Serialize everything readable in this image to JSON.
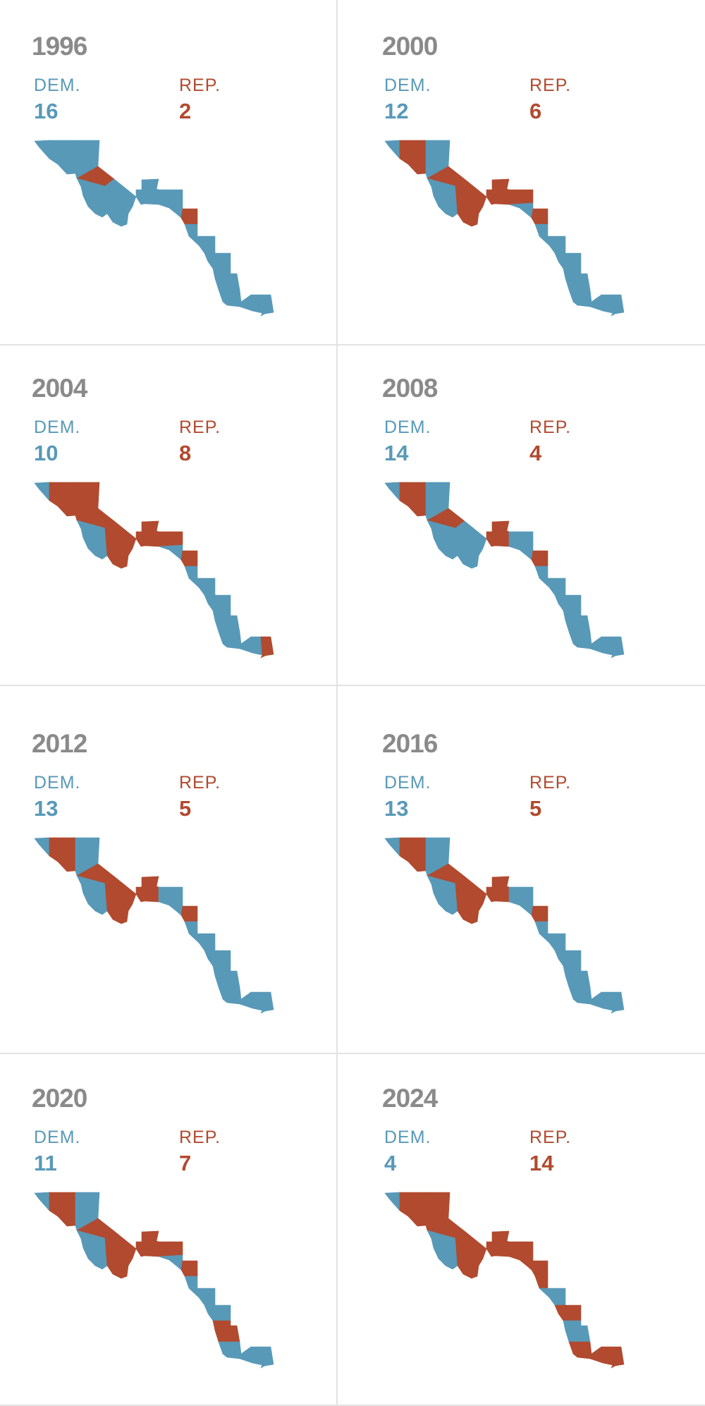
{
  "colors": {
    "dem": "#5899b8",
    "rep": "#b14a2f",
    "year": "#8a8a8a"
  },
  "labels": {
    "dem": "DEM.",
    "rep": "REP."
  },
  "chart_data": {
    "type": "choropleth-small-multiples",
    "legend": [
      "DEM.",
      "REP."
    ],
    "panels": [
      {
        "year": "1996",
        "dem": "16",
        "rep": "2",
        "winners": [
          "D",
          "D",
          "D",
          "R",
          "D",
          "D",
          "D",
          "D",
          "D",
          "R",
          "D",
          "D",
          "D",
          "D",
          "D",
          "D",
          "D",
          "D"
        ]
      },
      {
        "year": "2000",
        "dem": "12",
        "rep": "6",
        "winners": [
          "D",
          "R",
          "D",
          "R",
          "D",
          "R",
          "R",
          "R",
          "D",
          "R",
          "D",
          "D",
          "D",
          "D",
          "D",
          "D",
          "D",
          "D"
        ]
      },
      {
        "year": "2004",
        "dem": "10",
        "rep": "8",
        "winners": [
          "D",
          "R",
          "R",
          "R",
          "D",
          "R",
          "R",
          "R",
          "D",
          "R",
          "D",
          "D",
          "D",
          "D",
          "D",
          "D",
          "D",
          "R"
        ]
      },
      {
        "year": "2008",
        "dem": "14",
        "rep": "4",
        "winners": [
          "D",
          "R",
          "D",
          "R",
          "D",
          "D",
          "R",
          "D",
          "D",
          "R",
          "D",
          "D",
          "D",
          "D",
          "D",
          "D",
          "D",
          "D"
        ]
      },
      {
        "year": "2012",
        "dem": "13",
        "rep": "5",
        "winners": [
          "D",
          "R",
          "D",
          "R",
          "D",
          "R",
          "R",
          "D",
          "D",
          "R",
          "D",
          "D",
          "D",
          "D",
          "D",
          "D",
          "D",
          "D"
        ]
      },
      {
        "year": "2016",
        "dem": "13",
        "rep": "5",
        "winners": [
          "D",
          "R",
          "D",
          "R",
          "D",
          "R",
          "R",
          "D",
          "D",
          "R",
          "D",
          "D",
          "D",
          "D",
          "D",
          "D",
          "D",
          "D"
        ]
      },
      {
        "year": "2020",
        "dem": "11",
        "rep": "7",
        "winners": [
          "D",
          "R",
          "D",
          "R",
          "D",
          "R",
          "R",
          "R",
          "D",
          "R",
          "D",
          "D",
          "D",
          "R",
          "D",
          "D",
          "D",
          "D"
        ]
      },
      {
        "year": "2024",
        "dem": "4",
        "rep": "14",
        "winners": [
          "D",
          "R",
          "R",
          "R",
          "D",
          "R",
          "R",
          "R",
          "R",
          "R",
          "R",
          "D",
          "R",
          "D",
          "R",
          "R",
          "R",
          "R"
        ]
      }
    ]
  }
}
